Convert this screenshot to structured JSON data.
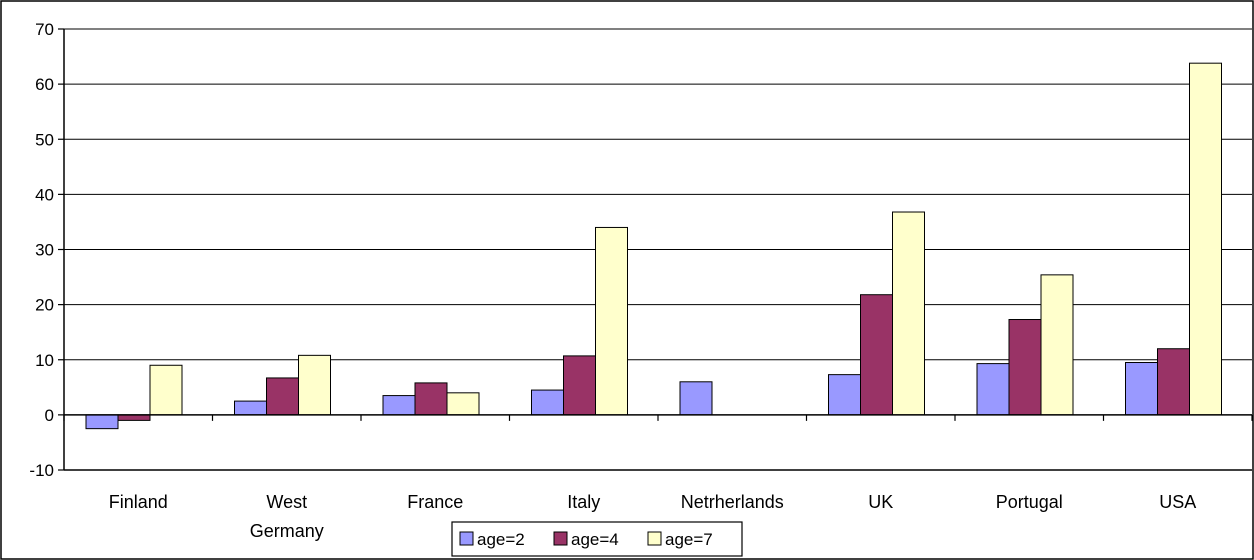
{
  "chart_data": {
    "type": "bar",
    "categories": [
      [
        "Finland"
      ],
      [
        "West",
        "Germany"
      ],
      [
        "France"
      ],
      [
        "Italy"
      ],
      [
        "Netrherlands"
      ],
      [
        "UK"
      ],
      [
        "Portugal"
      ],
      [
        "USA"
      ]
    ],
    "series": [
      {
        "name": "age=2",
        "color": "#9999ff",
        "values": [
          -2.5,
          2.5,
          3.5,
          4.5,
          6,
          7.3,
          9.3,
          9.5
        ]
      },
      {
        "name": "age=4",
        "color": "#993366",
        "values": [
          -1,
          6.7,
          5.8,
          10.7,
          null,
          21.8,
          17.3,
          12
        ]
      },
      {
        "name": "age=7",
        "color": "#ffffcc",
        "values": [
          9,
          10.8,
          4,
          34,
          null,
          36.8,
          25.4,
          63.8
        ]
      }
    ],
    "ylim": [
      -10,
      70
    ],
    "yticks": [
      -10,
      0,
      10,
      20,
      30,
      40,
      50,
      60,
      70
    ],
    "grid": true,
    "legend_position": "bottom-center",
    "title": "",
    "xlabel": "",
    "ylabel": ""
  }
}
